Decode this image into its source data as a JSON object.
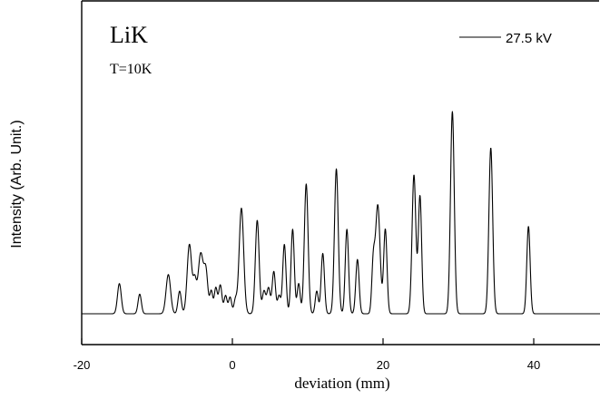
{
  "chart_data": {
    "type": "line",
    "title": "LiK",
    "annotation": "T=10K",
    "xlabel": "deviation (mm)",
    "ylabel": "Intensity (Arb. Unit.)",
    "xlim": [
      -20,
      50
    ],
    "ylim": [
      -0.1,
      1.0
    ],
    "x_ticks": [
      -20,
      0,
      20,
      40
    ],
    "x_tick_labels": [
      "-20",
      "0",
      "20",
      "40"
    ],
    "y_ticks_labeled": false,
    "grid": false,
    "legend_position": "top-right",
    "series": [
      {
        "name": "27.5 kV",
        "color": "#000000",
        "baseline": 0.0,
        "peaks": [
          {
            "x": -15.0,
            "h": 0.1,
            "w": 0.25
          },
          {
            "x": -12.3,
            "h": 0.065,
            "w": 0.22
          },
          {
            "x": -8.5,
            "h": 0.13,
            "w": 0.3
          },
          {
            "x": -7.0,
            "h": 0.075,
            "w": 0.22
          },
          {
            "x": -5.7,
            "h": 0.23,
            "w": 0.3
          },
          {
            "x": -5.0,
            "h": 0.1,
            "w": 0.22
          },
          {
            "x": -4.2,
            "h": 0.2,
            "w": 0.35
          },
          {
            "x": -3.5,
            "h": 0.13,
            "w": 0.25
          },
          {
            "x": -2.8,
            "h": 0.075,
            "w": 0.2
          },
          {
            "x": -2.2,
            "h": 0.085,
            "w": 0.2
          },
          {
            "x": -1.6,
            "h": 0.095,
            "w": 0.22
          },
          {
            "x": -0.9,
            "h": 0.06,
            "w": 0.2
          },
          {
            "x": -0.3,
            "h": 0.055,
            "w": 0.2
          },
          {
            "x": 0.4,
            "h": 0.045,
            "w": 0.2
          },
          {
            "x": 1.2,
            "h": 0.35,
            "w": 0.3
          },
          {
            "x": 3.3,
            "h": 0.31,
            "w": 0.25
          },
          {
            "x": 4.2,
            "h": 0.075,
            "w": 0.22
          },
          {
            "x": 4.8,
            "h": 0.085,
            "w": 0.22
          },
          {
            "x": 5.5,
            "h": 0.14,
            "w": 0.22
          },
          {
            "x": 6.2,
            "h": 0.06,
            "w": 0.2
          },
          {
            "x": 6.9,
            "h": 0.23,
            "w": 0.22
          },
          {
            "x": 8.0,
            "h": 0.28,
            "w": 0.22
          },
          {
            "x": 8.8,
            "h": 0.1,
            "w": 0.2
          },
          {
            "x": 9.8,
            "h": 0.43,
            "w": 0.25
          },
          {
            "x": 11.2,
            "h": 0.075,
            "w": 0.2
          },
          {
            "x": 12.0,
            "h": 0.2,
            "w": 0.22
          },
          {
            "x": 13.8,
            "h": 0.48,
            "w": 0.25
          },
          {
            "x": 15.2,
            "h": 0.28,
            "w": 0.22
          },
          {
            "x": 16.6,
            "h": 0.18,
            "w": 0.22
          },
          {
            "x": 18.7,
            "h": 0.16,
            "w": 0.2
          },
          {
            "x": 19.3,
            "h": 0.36,
            "w": 0.3
          },
          {
            "x": 20.3,
            "h": 0.28,
            "w": 0.22
          },
          {
            "x": 24.1,
            "h": 0.46,
            "w": 0.25
          },
          {
            "x": 24.9,
            "h": 0.39,
            "w": 0.22
          },
          {
            "x": 29.2,
            "h": 0.67,
            "w": 0.25
          },
          {
            "x": 34.3,
            "h": 0.55,
            "w": 0.25
          },
          {
            "x": 39.3,
            "h": 0.29,
            "w": 0.22
          }
        ]
      }
    ]
  }
}
